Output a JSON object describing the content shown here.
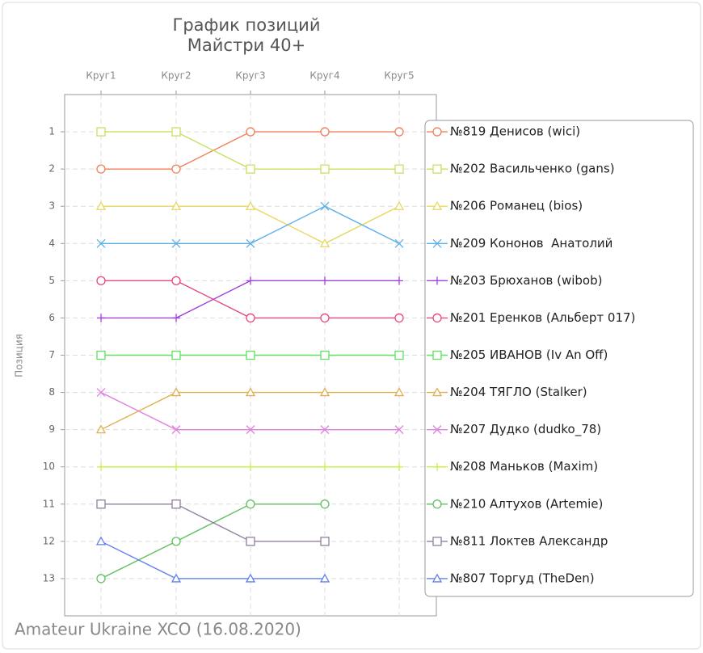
{
  "chart_data": {
    "type": "line",
    "title": [
      "График позиций",
      "Майстри 40+"
    ],
    "ylabel": "Позиция",
    "footer": "Amateur Ukraine XCO (16.08.2020)",
    "categories": [
      "Круг1",
      "Круг2",
      "Круг3",
      "Круг4",
      "Круг5"
    ],
    "ylim": [
      0,
      14
    ],
    "y_inverted": true,
    "yticks": [
      1,
      2,
      3,
      4,
      5,
      6,
      7,
      8,
      9,
      10,
      11,
      12,
      13
    ],
    "grid": true,
    "legend": "right",
    "series": [
      {
        "name": "№819 Денисов (wici)",
        "color": "#f0805a",
        "marker": "circle",
        "values": [
          2,
          2,
          1,
          1,
          1
        ]
      },
      {
        "name": "№202 Васильченко (gans)",
        "color": "#c8e060",
        "marker": "square",
        "values": [
          1,
          1,
          2,
          2,
          2
        ]
      },
      {
        "name": "№206 Романец (bios)",
        "color": "#e8d860",
        "marker": "triangle",
        "values": [
          3,
          3,
          3,
          4,
          3
        ]
      },
      {
        "name": "№209 Кононов  Анатолий",
        "color": "#60b0e8",
        "marker": "x",
        "values": [
          4,
          4,
          4,
          3,
          4
        ]
      },
      {
        "name": "№203 Брюханов (wibob)",
        "color": "#a040e0",
        "marker": "plus",
        "values": [
          6,
          6,
          5,
          5,
          5
        ]
      },
      {
        "name": "№201 Еренков (Альберт 017)",
        "color": "#e84880",
        "marker": "circle",
        "values": [
          5,
          5,
          6,
          6,
          6
        ]
      },
      {
        "name": "№205 ИВАНОВ (Iv An Off)",
        "color": "#60e060",
        "marker": "square",
        "values": [
          7,
          7,
          7,
          7,
          7
        ]
      },
      {
        "name": "№204 ТЯГЛО (Stalker)",
        "color": "#e0b050",
        "marker": "triangle",
        "values": [
          9,
          8,
          8,
          8,
          8
        ]
      },
      {
        "name": "№207 Дудко (dudko_78)",
        "color": "#e080e0",
        "marker": "x",
        "values": [
          8,
          9,
          9,
          9,
          9
        ]
      },
      {
        "name": "№208 Маньков (Maxim)",
        "color": "#c8f040",
        "marker": "plus",
        "values": [
          10,
          10,
          10,
          10,
          10
        ]
      },
      {
        "name": "№210 Алтухов (Artemie)",
        "color": "#60c060",
        "marker": "circle",
        "values": [
          13,
          12,
          11,
          11,
          null
        ]
      },
      {
        "name": "№811 Локтев Александр",
        "color": "#9080a0",
        "marker": "square",
        "values": [
          11,
          11,
          12,
          12,
          null
        ]
      },
      {
        "name": "№807 Торгуд (TheDen)",
        "color": "#6080f0",
        "marker": "triangle",
        "values": [
          12,
          13,
          13,
          13,
          null
        ]
      }
    ]
  }
}
